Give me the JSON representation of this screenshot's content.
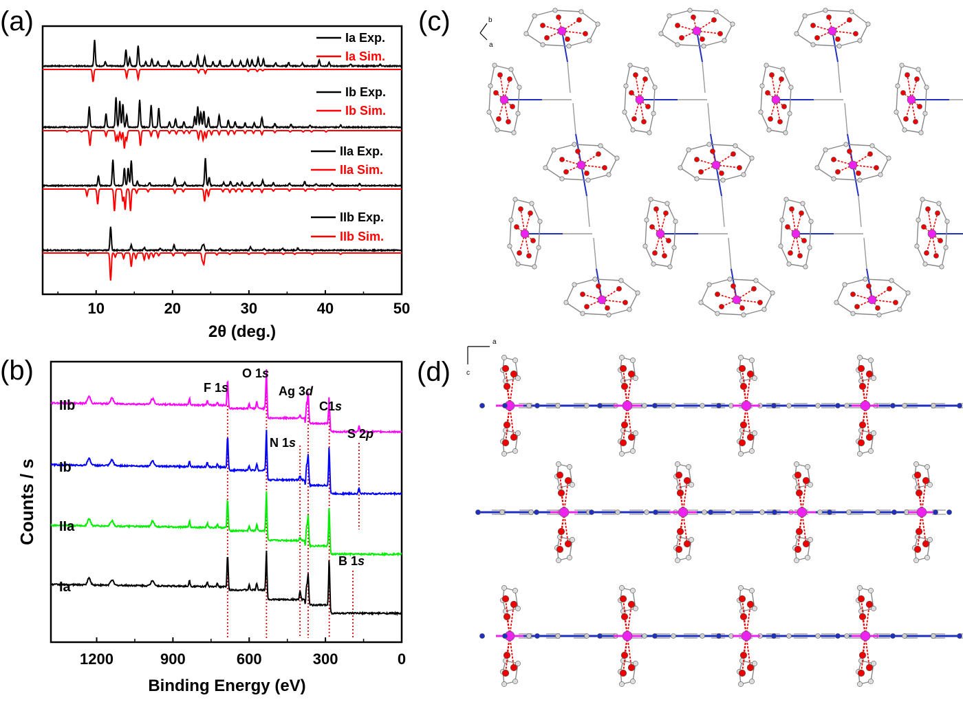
{
  "panels": {
    "a": {
      "label": "(a)",
      "xlabel": "2θ (deg.)",
      "xticks": [
        "10",
        "20",
        "30",
        "40",
        "50"
      ],
      "legend": [
        {
          "exp": "Ia Exp.",
          "sim": "Ia Sim."
        },
        {
          "exp": "Ib Exp.",
          "sim": "Ib Sim."
        },
        {
          "exp": "IIa Exp.",
          "sim": "IIa Sim."
        },
        {
          "exp": "IIb Exp.",
          "sim": "IIb Sim."
        }
      ],
      "colors": {
        "exp": "#000000",
        "sim": "#ff0000"
      }
    },
    "b": {
      "label": "(b)",
      "xlabel": "Binding Energy (eV)",
      "ylabel": "Counts / s",
      "xticks": [
        "1200",
        "900",
        "600",
        "300",
        "0"
      ],
      "series": [
        {
          "name": "IIb",
          "color": "#ff00ff"
        },
        {
          "name": "Ib",
          "color": "#0000ff"
        },
        {
          "name": "IIa",
          "color": "#00ee00"
        },
        {
          "name": "Ia",
          "color": "#000000"
        }
      ],
      "peaks": [
        {
          "main": "F 1",
          "italic": "s",
          "energy": 685
        },
        {
          "main": "O 1",
          "italic": "s",
          "energy": 532
        },
        {
          "main": "Ag 3",
          "italic": "d",
          "energy": 368
        },
        {
          "main": "N 1",
          "italic": "s",
          "energy": 400
        },
        {
          "main": "C1",
          "italic": "s",
          "energy": 285
        },
        {
          "main": "S 2",
          "italic": "p",
          "energy": 168
        },
        {
          "main": "B 1",
          "italic": "s",
          "energy": 192
        }
      ]
    },
    "c": {
      "label": "(c)",
      "axis1": "b",
      "axis2": "a"
    },
    "d": {
      "label": "(d)",
      "axis1": "a",
      "axis2": "c"
    }
  }
}
